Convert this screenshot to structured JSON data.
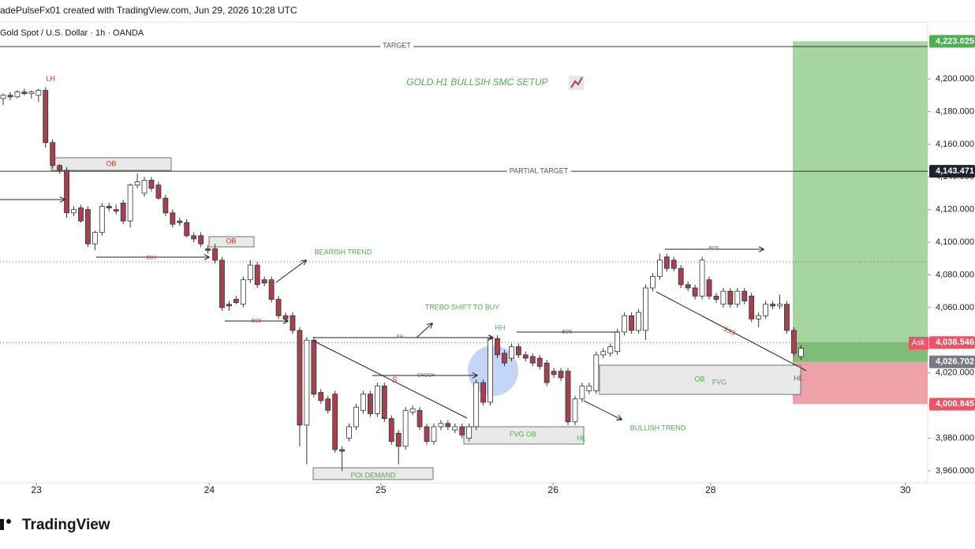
{
  "chart_data": {
    "type": "candlestick",
    "header": "adePulseFx01 created with TradingView.com, Jun 29, 2026 10:28 UTC",
    "symbol": "Gold Spot / U.S. Dollar · 1h · OANDA",
    "logo": "TradingView",
    "up_color": "#ffffff",
    "down_color": "#a8414f",
    "candles": [
      [
        4188,
        4191,
        4184,
        4190
      ],
      [
        4190,
        4192,
        4187,
        4189
      ],
      [
        4189,
        4193,
        4188,
        4192
      ],
      [
        4192,
        4194,
        4190,
        4191
      ],
      [
        4191,
        4193,
        4188,
        4192
      ],
      [
        4190,
        4194,
        4186,
        4193
      ],
      [
        4193,
        4195,
        4158,
        4161
      ],
      [
        4161,
        4163,
        4145,
        4147
      ],
      [
        4147,
        4148,
        4142,
        4144
      ],
      [
        4144,
        4146,
        4115,
        4118
      ],
      [
        4118,
        4122,
        4116,
        4120
      ],
      [
        4121,
        4123,
        4112,
        4113
      ],
      [
        4120,
        4122,
        4097,
        4099
      ],
      [
        4099,
        4107,
        4095,
        4106
      ],
      [
        4106,
        4124,
        4104,
        4122
      ],
      [
        4122,
        4124,
        4119,
        4121
      ],
      [
        4120,
        4123,
        4117,
        4119
      ],
      [
        4124,
        4126,
        4111,
        4113
      ],
      [
        4113,
        4136,
        4109,
        4135
      ],
      [
        4135,
        4142,
        4133,
        4137
      ],
      [
        4130,
        4140,
        4128,
        4138
      ],
      [
        4138,
        4140,
        4131,
        4133
      ],
      [
        4135,
        4137,
        4126,
        4127
      ],
      [
        4127,
        4129,
        4116,
        4118
      ],
      [
        4118,
        4120,
        4109,
        4111
      ],
      [
        4113,
        4115,
        4110,
        4112
      ],
      [
        4112,
        4114,
        4103,
        4104
      ],
      [
        4104,
        4106,
        4100,
        4102
      ],
      [
        4104,
        4106,
        4097,
        4099
      ],
      [
        4096,
        4098,
        4093,
        4095
      ],
      [
        4096,
        4099,
        4087,
        4089
      ],
      [
        4089,
        4091,
        4058,
        4060
      ],
      [
        4062,
        4064,
        4058,
        4061
      ],
      [
        4065,
        4067,
        4062,
        4063
      ],
      [
        4062,
        4079,
        4060,
        4077
      ],
      [
        4077,
        4089,
        4075,
        4086
      ],
      [
        4086,
        4088,
        4072,
        4074
      ],
      [
        4077,
        4079,
        4073,
        4075
      ],
      [
        4077,
        4079,
        4063,
        4065
      ],
      [
        4065,
        4067,
        4053,
        4055
      ],
      [
        4055,
        4057,
        4051,
        4053
      ],
      [
        4055,
        4057,
        4044,
        4046
      ],
      [
        4046,
        4048,
        3975,
        3988
      ],
      [
        3988,
        4042,
        3964,
        4040
      ],
      [
        4040,
        4042,
        4005,
        4007
      ],
      [
        4008,
        4010,
        4001,
        4003
      ],
      [
        4004,
        4006,
        3995,
        3997
      ],
      [
        4007,
        4009,
        3971,
        3973
      ],
      [
        3973,
        3975,
        3960,
        3972
      ],
      [
        3980,
        3989,
        3978,
        3987
      ],
      [
        3987,
        4001,
        3985,
        3999
      ],
      [
        3997,
        4009,
        3995,
        4007
      ],
      [
        4007,
        4009,
        3993,
        3995
      ],
      [
        3995,
        4014,
        3993,
        4012
      ],
      [
        4012,
        4014,
        3990,
        3992
      ],
      [
        3992,
        3994,
        3976,
        3978
      ],
      [
        3983,
        3985,
        3964,
        3975
      ],
      [
        3975,
        3999,
        3973,
        3997
      ],
      [
        3996,
        4000,
        3994,
        3998
      ],
      [
        3997,
        3999,
        3985,
        3987
      ],
      [
        3987,
        3989,
        3976,
        3978
      ],
      [
        3978,
        3989,
        3976,
        3987
      ],
      [
        3987,
        3991,
        3985,
        3989
      ],
      [
        3989,
        3991,
        3985,
        3987
      ],
      [
        3985,
        3989,
        3983,
        3987
      ],
      [
        3987,
        3989,
        3980,
        3982
      ],
      [
        3980,
        3989,
        3978,
        3987
      ],
      [
        3987,
        4016,
        3985,
        4014
      ],
      [
        4014,
        4016,
        4000,
        4002
      ],
      [
        4002,
        4043,
        4000,
        4041
      ],
      [
        4041,
        4043,
        4029,
        4031
      ],
      [
        4032,
        4034,
        4024,
        4026
      ],
      [
        4029,
        4038,
        4027,
        4036
      ],
      [
        4036,
        4038,
        4029,
        4031
      ],
      [
        4031,
        4033,
        4027,
        4029
      ],
      [
        4030,
        4032,
        4024,
        4026
      ],
      [
        4029,
        4031,
        4022,
        4024
      ],
      [
        4026,
        4028,
        4012,
        4014
      ],
      [
        4021,
        4023,
        4017,
        4019
      ],
      [
        4021,
        4023,
        4015,
        4017
      ],
      [
        4021,
        4023,
        3988,
        3990
      ],
      [
        3990,
        4006,
        3988,
        4004
      ],
      [
        4004,
        4014,
        4002,
        4012
      ],
      [
        4009,
        4014,
        4007,
        4012
      ],
      [
        4009,
        4033,
        4007,
        4031
      ],
      [
        4031,
        4035,
        4029,
        4033
      ],
      [
        4032,
        4038,
        4030,
        4036
      ],
      [
        4033,
        4047,
        4031,
        4045
      ],
      [
        4045,
        4057,
        4043,
        4055
      ],
      [
        4055,
        4057,
        4044,
        4046
      ],
      [
        4046,
        4059,
        4044,
        4057
      ],
      [
        4046,
        4074,
        4040,
        4072
      ],
      [
        4072,
        4081,
        4070,
        4079
      ],
      [
        4079,
        4093,
        4077,
        4089
      ],
      [
        4091,
        4093,
        4082,
        4084
      ],
      [
        4089,
        4091,
        4082,
        4084
      ],
      [
        4084,
        4086,
        4072,
        4074
      ],
      [
        4074,
        4076,
        4070,
        4072
      ],
      [
        4072,
        4074,
        4065,
        4067
      ],
      [
        4067,
        4091,
        4065,
        4089
      ],
      [
        4077,
        4079,
        4065,
        4067
      ],
      [
        4067,
        4069,
        4063,
        4065
      ],
      [
        4062,
        4072,
        4060,
        4070
      ],
      [
        4070,
        4072,
        4060,
        4062
      ],
      [
        4062,
        4072,
        4060,
        4070
      ],
      [
        4070,
        4072,
        4062,
        4064
      ],
      [
        4067,
        4069,
        4051,
        4053
      ],
      [
        4053,
        4057,
        4048,
        4055
      ],
      [
        4055,
        4064,
        4053,
        4062
      ],
      [
        4062,
        4064,
        4059,
        4061
      ],
      [
        4061,
        4068,
        4059,
        4062
      ],
      [
        4062,
        4064,
        4044,
        4046
      ],
      [
        4046,
        4048,
        4030,
        4032
      ],
      [
        4030,
        4037,
        4028,
        4035
      ]
    ],
    "xlim": [
      -0.45,
      130.95
    ],
    "xticks": [
      {
        "value": 4.7,
        "label": "23"
      },
      {
        "value": 29.2,
        "label": "24"
      },
      {
        "value": 53.5,
        "label": "25"
      },
      {
        "value": 77.9,
        "label": "26"
      },
      {
        "value": 100.2,
        "label": "28"
      },
      {
        "value": 127.8,
        "label": "30"
      }
    ],
    "ylim": [
      3952.7,
      4234.8
    ],
    "yticks": [
      {
        "value": 3960,
        "label": "3,960.000"
      },
      {
        "value": 3980,
        "label": "3,980.000"
      },
      {
        "value": 4000,
        "label": "4,000.000"
      },
      {
        "value": 4020,
        "label": "4,020.000"
      },
      {
        "value": 4040,
        "label": "4,040.000"
      },
      {
        "value": 4060,
        "label": "4,060.000"
      },
      {
        "value": 4080,
        "label": "4,080.000"
      },
      {
        "value": 4100,
        "label": "4,100.000"
      },
      {
        "value": 4120,
        "label": "4,120.000"
      },
      {
        "value": 4140,
        "label": "4,140.000"
      },
      {
        "value": 4160,
        "label": "4,160.000"
      },
      {
        "value": 4180,
        "label": "4,180.000"
      },
      {
        "value": 4200,
        "label": "4,200.000"
      }
    ],
    "price_labels": [
      {
        "value": 4223.025,
        "label": "4,223.025",
        "color": "#4caf50"
      },
      {
        "value": 4143.471,
        "label": "4,143.471",
        "color": "#1e222d"
      },
      {
        "value": 4038.546,
        "label": "4,038.546",
        "color": "#f05365"
      },
      {
        "value": 4026.702,
        "label": "4,026.702",
        "color": "#787b86"
      },
      {
        "value": 4000.845,
        "label": "4,000.845",
        "color": "#f05365"
      }
    ],
    "annotations": [
      "TARGET",
      "PARTIAL TARGET",
      "GOLD H1 BULLSIH SMC SETUP",
      "LH",
      "OB",
      "OB",
      "OB",
      "FVG",
      "BOS",
      "BOS",
      "BOS",
      "BOS",
      "BEARISH TREND",
      "TREBD SHIFT TO BUY",
      "HH",
      "EH",
      "CHOCH",
      "S",
      "FVG OB",
      "HL",
      "HL",
      "BULLISH TREND",
      "POI DEMAND",
      "SSS",
      "Ask"
    ]
  }
}
